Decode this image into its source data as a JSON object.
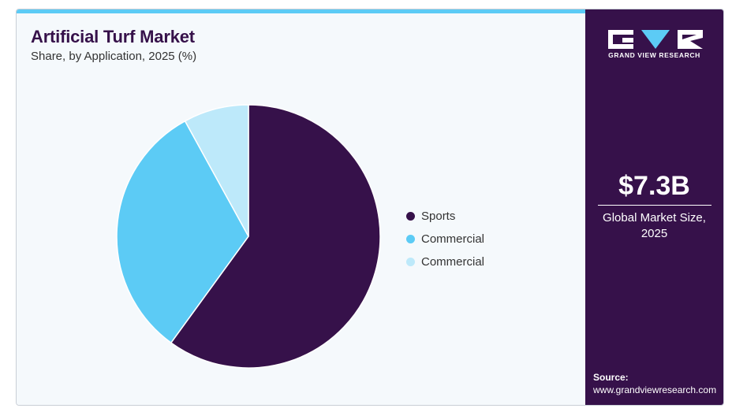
{
  "header": {
    "title": "Artificial Turf Market",
    "subtitle": "Share, by Application, 2025 (%)"
  },
  "colors": {
    "dark_purple": "#36114a",
    "light_blue": "#5ccbf5",
    "pale_blue": "#bde9fa",
    "panel_bg": "#f5f9fc"
  },
  "chart_data": {
    "type": "pie",
    "title": "Artificial Turf Market",
    "subtitle": "Share, by Application, 2025 (%)",
    "slices": [
      {
        "label": "Sports",
        "value": 60,
        "color": "#36114a"
      },
      {
        "label": "Commercial",
        "value": 32,
        "color": "#5ccbf5"
      },
      {
        "label": "Commercial",
        "value": 8,
        "color": "#bde9fa"
      }
    ],
    "start_angle_deg": 0,
    "direction": "clockwise",
    "legend_position": "right"
  },
  "sidebar": {
    "brand": "GRAND VIEW RESEARCH",
    "logo_icon": "grand-view-research-logo",
    "market_value": "$7.3B",
    "market_label": "Global Market Size, 2025",
    "source_label": "Source:",
    "source_url": "www.grandviewresearch.com"
  }
}
